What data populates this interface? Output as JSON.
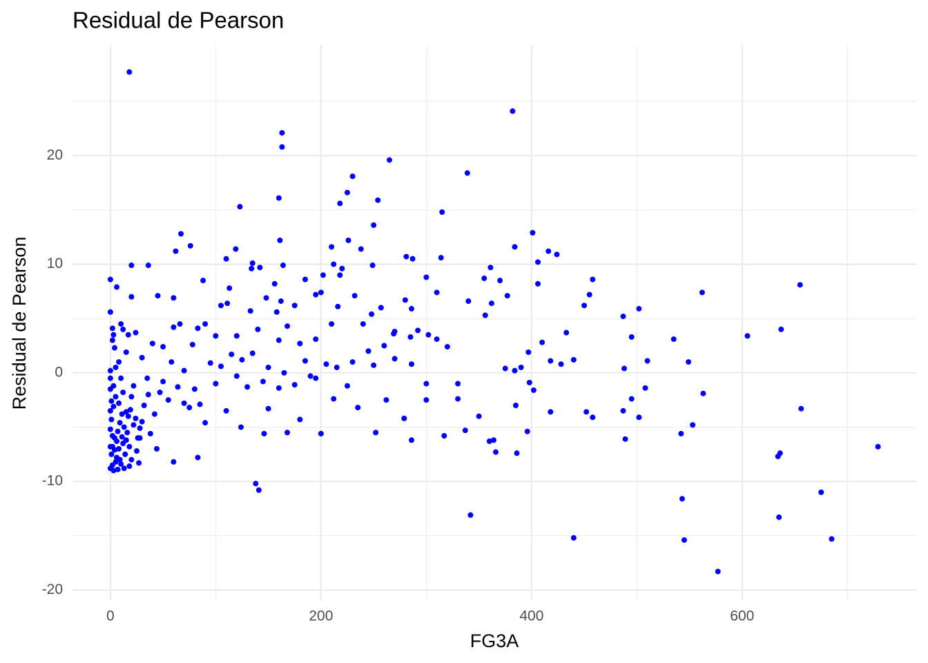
{
  "chart_data": {
    "type": "scatter",
    "title": "Residual de Pearson",
    "x_label": "FG3A",
    "y_label": "Residual de Pearson",
    "color": "#0000ff",
    "grid": true,
    "xlim": [
      -36,
      766
    ],
    "ylim": [
      -21,
      30.2
    ],
    "xticks": [
      0,
      200,
      400,
      600
    ],
    "yticks": [
      -20,
      -10,
      0,
      10,
      20
    ],
    "xminor": [
      100,
      300,
      500,
      700
    ],
    "yminor": [
      -15,
      -5,
      5,
      15,
      25
    ],
    "x": [
      18,
      382,
      163,
      163,
      265,
      339,
      230,
      225,
      218,
      254,
      123,
      160,
      315,
      250,
      67,
      226,
      161,
      401,
      384,
      416,
      424,
      76,
      119,
      62,
      210,
      238,
      110,
      281,
      287,
      314,
      406,
      20,
      36,
      135,
      142,
      134,
      212,
      220,
      249,
      361,
      164,
      0,
      6,
      20,
      45,
      60,
      88,
      113,
      156,
      185,
      202,
      218,
      232,
      300,
      310,
      355,
      370,
      377,
      406,
      455,
      458,
      562,
      655,
      0,
      2,
      10,
      3,
      17,
      24,
      40,
      60,
      66,
      83,
      90,
      105,
      111,
      133,
      148,
      158,
      162,
      168,
      175,
      195,
      200,
      216,
      248,
      257,
      280,
      286,
      340,
      356,
      362,
      450,
      487,
      502,
      605,
      637,
      495,
      535,
      433,
      410,
      397,
      428,
      440,
      488,
      510,
      549,
      375,
      390,
      384,
      418,
      302,
      292,
      310,
      320,
      269,
      270,
      240,
      210,
      195,
      180,
      160,
      140,
      120,
      100,
      78,
      50,
      30,
      15,
      5,
      0,
      0,
      3,
      10,
      22,
      35,
      50,
      64,
      80,
      100,
      120,
      130,
      145,
      160,
      175,
      190,
      205,
      215,
      230,
      250,
      270,
      286,
      300,
      330,
      350,
      342,
      364,
      366,
      386,
      396,
      402,
      418,
      440,
      452,
      458,
      487,
      489,
      495,
      502,
      508,
      542,
      543,
      545,
      553,
      563,
      577,
      634,
      636,
      635,
      656,
      675,
      685,
      729,
      138,
      141,
      146,
      168,
      200,
      252,
      286,
      317,
      337,
      360,
      385,
      398,
      330,
      300,
      279,
      262,
      235,
      212,
      180,
      150,
      124,
      110,
      90,
      83,
      60,
      44,
      38,
      26,
      0,
      2,
      3,
      5,
      6,
      8,
      10,
      12,
      14,
      16,
      18,
      20,
      22,
      25,
      28,
      30,
      1,
      2,
      4,
      7,
      9,
      11,
      13,
      15,
      17,
      19,
      0,
      1,
      3,
      5,
      8,
      12,
      0,
      1,
      4,
      6,
      9,
      11,
      13,
      15,
      20,
      24,
      27,
      32,
      36,
      42,
      47,
      55,
      70,
      75,
      85,
      58,
      70,
      95,
      105,
      115,
      125,
      135,
      150,
      165,
      185,
      195,
      225,
      245,
      260,
      285,
      2,
      4,
      8,
      12,
      0,
      0,
      2,
      7,
      18,
      28
    ],
    "values": [
      27.7,
      24.1,
      22.1,
      20.8,
      19.6,
      18.4,
      18.1,
      16.6,
      15.6,
      15.9,
      15.3,
      16.1,
      14.8,
      13.6,
      12.8,
      12.2,
      12.2,
      12.9,
      11.6,
      11.2,
      10.9,
      11.7,
      11.4,
      11.2,
      11.6,
      11.4,
      10.5,
      10.7,
      10.5,
      10.6,
      10.2,
      9.9,
      9.9,
      10.1,
      9.7,
      9.6,
      10.0,
      9.6,
      9.9,
      9.7,
      9.9,
      8.6,
      7.9,
      7.0,
      7.1,
      6.9,
      8.5,
      7.8,
      8.2,
      8.6,
      9.0,
      9.0,
      7.1,
      8.8,
      7.4,
      8.7,
      8.5,
      7.1,
      8.2,
      7.2,
      8.6,
      7.4,
      8.1,
      5.6,
      4.1,
      4.5,
      3.5,
      3.5,
      3.7,
      2.7,
      4.2,
      4.5,
      4.1,
      4.5,
      6.2,
      6.4,
      5.7,
      6.9,
      5.6,
      6.6,
      4.3,
      6.2,
      7.2,
      7.4,
      6.1,
      5.4,
      6.0,
      6.7,
      5.9,
      6.6,
      5.3,
      6.4,
      6.2,
      5.2,
      5.9,
      3.4,
      4.0,
      3.3,
      3.1,
      3.7,
      2.8,
      1.9,
      0.8,
      1.2,
      0.4,
      1.1,
      1.0,
      0.4,
      0.5,
      0.2,
      1.1,
      3.5,
      3.9,
      3.1,
      2.4,
      3.6,
      3.8,
      4.5,
      4.5,
      3.1,
      2.7,
      3.0,
      4.0,
      3.4,
      3.4,
      2.6,
      2.4,
      1.4,
      1.9,
      0.5,
      0.2,
      -0.5,
      -1.2,
      -0.5,
      -1.2,
      -0.5,
      -0.8,
      -1.3,
      -1.5,
      -1.0,
      -0.3,
      -1.3,
      -0.8,
      -1.4,
      -1.1,
      -0.3,
      0.8,
      0.5,
      1.0,
      0.7,
      1.3,
      0.8,
      -1.0,
      -2.4,
      -4.0,
      -13.1,
      -6.2,
      -7.3,
      -7.4,
      -5.4,
      -1.6,
      -3.6,
      -15.2,
      -3.6,
      -4.1,
      -3.5,
      -6.1,
      -2.4,
      -4.1,
      -1.4,
      -5.6,
      -11.6,
      -15.4,
      -4.8,
      -1.9,
      -18.3,
      -7.7,
      -7.4,
      -13.3,
      -3.3,
      -11.0,
      -15.3,
      -6.8,
      -10.2,
      -10.8,
      -5.6,
      -5.5,
      -5.6,
      -5.5,
      -6.2,
      -5.8,
      -5.3,
      -6.3,
      -3.0,
      -0.9,
      -1.0,
      -2.5,
      -4.2,
      -2.5,
      -3.2,
      -2.4,
      -4.3,
      -3.3,
      -5.0,
      -3.5,
      -4.6,
      -7.8,
      -8.2,
      -7.0,
      -5.6,
      -6.0,
      -8.8,
      -8.5,
      -9.0,
      -8.2,
      -7.8,
      -7.0,
      -8.4,
      -6.5,
      -7.5,
      -5.5,
      -6.8,
      -8.0,
      -4.8,
      -7.2,
      -6.0,
      -4.5,
      -7.5,
      -6.8,
      -6.0,
      -5.4,
      -4.6,
      -3.8,
      -8.8,
      -6.2,
      -4.0,
      -3.4,
      -5.2,
      -4.3,
      -3.1,
      -2.2,
      -2.8,
      -1.8,
      -1.5,
      -2.6,
      -7.1,
      -6.3,
      -8.0,
      -5.9,
      -5.0,
      -3.6,
      -2.2,
      -4.2,
      -8.3,
      -3.0,
      -2.0,
      -3.8,
      -1.8,
      -2.5,
      -2.8,
      -3.2,
      -2.9,
      1.0,
      0.2,
      0.9,
      0.6,
      1.7,
      1.2,
      1.8,
      0.5,
      0.0,
      1.1,
      -0.5,
      -1.2,
      2.0,
      2.5,
      3.3,
      3.0,
      2.3,
      1.0,
      4.0,
      -3.5,
      -6.8,
      -5.8,
      -8.9,
      -8.6,
      -5.1
    ]
  }
}
